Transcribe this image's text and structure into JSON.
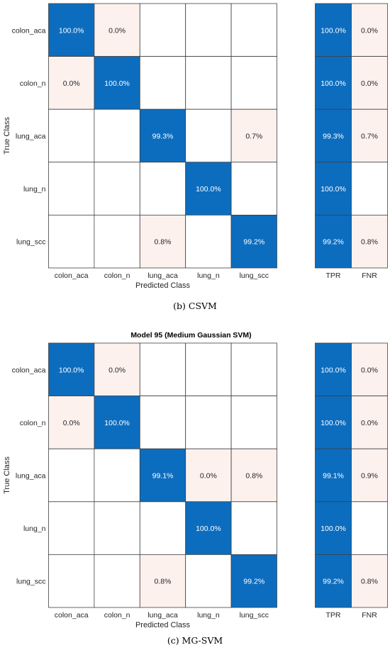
{
  "colors": {
    "high": "#0c6dbf",
    "low": "#fdf1ee",
    "grid": "#404040",
    "text_on_high": "#ffffff",
    "text_on_low": "#262626"
  },
  "chart_data": [
    {
      "type": "heatmap",
      "title": "",
      "caption": "(b) CSVM",
      "xlabel": "Predicted Class",
      "ylabel": "True Class",
      "classes": [
        "colon_aca",
        "colon_n",
        "lung_aca",
        "lung_n",
        "lung_scc"
      ],
      "matrix": [
        [
          100.0,
          0.0,
          null,
          null,
          null
        ],
        [
          0.0,
          100.0,
          null,
          null,
          null
        ],
        [
          null,
          null,
          99.3,
          null,
          0.7
        ],
        [
          null,
          null,
          null,
          100.0,
          null
        ],
        [
          null,
          null,
          0.8,
          null,
          99.2
        ]
      ],
      "summary_columns": [
        "TPR",
        "FNR"
      ],
      "summary": [
        [
          100.0,
          0.0
        ],
        [
          100.0,
          0.0
        ],
        [
          99.3,
          0.7
        ],
        [
          100.0,
          null
        ],
        [
          99.2,
          0.8
        ]
      ],
      "value_suffix": "%"
    },
    {
      "type": "heatmap",
      "title": "Model 95 (Medium Gaussian SVM)",
      "caption": "(c) MG-SVM",
      "xlabel": "Predicted Class",
      "ylabel": "True Class",
      "classes": [
        "colon_aca",
        "colon_n",
        "lung_aca",
        "lung_n",
        "lung_scc"
      ],
      "matrix": [
        [
          100.0,
          0.0,
          null,
          null,
          null
        ],
        [
          0.0,
          100.0,
          null,
          null,
          null
        ],
        [
          null,
          null,
          99.1,
          0.0,
          0.8
        ],
        [
          null,
          null,
          null,
          100.0,
          null
        ],
        [
          null,
          null,
          0.8,
          null,
          99.2
        ]
      ],
      "summary_columns": [
        "TPR",
        "FNR"
      ],
      "summary": [
        [
          100.0,
          0.0
        ],
        [
          100.0,
          0.0
        ],
        [
          99.1,
          0.9
        ],
        [
          100.0,
          null
        ],
        [
          99.2,
          0.8
        ]
      ],
      "value_suffix": "%"
    }
  ]
}
